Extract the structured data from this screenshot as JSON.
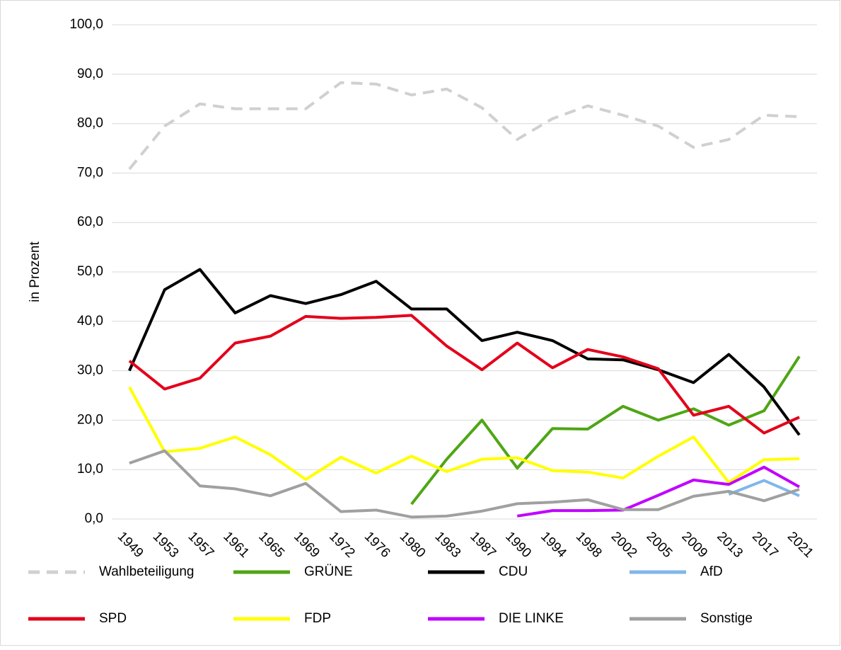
{
  "chart_data": {
    "type": "line",
    "y_label": "in Prozent",
    "categories": [
      "1949",
      "1953",
      "1957",
      "1961",
      "1965",
      "1969",
      "1972",
      "1976",
      "1980",
      "1983",
      "1987",
      "1990",
      "1994",
      "1998",
      "2002",
      "2005",
      "2009",
      "2013",
      "2017",
      "2021"
    ],
    "series": [
      {
        "name": "Wahlbeteiligung",
        "color": "#d0d0d0",
        "style": "dashed",
        "values": [
          70.8,
          79.5,
          84.0,
          83.0,
          83.0,
          83.0,
          88.3,
          88.0,
          85.8,
          87.0,
          83.2,
          76.8,
          81.0,
          83.6,
          81.7,
          79.5,
          75.2,
          76.8,
          81.7,
          81.4
        ]
      },
      {
        "name": "GRÜNE",
        "color": "#4ea614",
        "values": [
          null,
          null,
          null,
          null,
          null,
          null,
          null,
          null,
          3.0,
          12.1,
          20.0,
          10.3,
          18.3,
          18.2,
          22.8,
          20.0,
          22.3,
          19.0,
          21.9,
          32.9
        ]
      },
      {
        "name": "CDU",
        "color": "#000000",
        "values": [
          30.0,
          46.4,
          50.5,
          41.7,
          45.2,
          43.6,
          45.4,
          48.1,
          42.5,
          42.5,
          36.1,
          37.8,
          36.1,
          32.4,
          32.2,
          30.2,
          27.6,
          33.3,
          26.7,
          17.0
        ]
      },
      {
        "name": "AfD",
        "color": "#7fb6ec",
        "values": [
          null,
          null,
          null,
          null,
          null,
          null,
          null,
          null,
          null,
          null,
          null,
          null,
          null,
          null,
          null,
          null,
          null,
          5.0,
          7.8,
          4.7
        ]
      },
      {
        "name": "SPD",
        "color": "#e3001b",
        "values": [
          32.0,
          26.3,
          28.5,
          35.6,
          37.0,
          41.0,
          40.6,
          40.8,
          41.2,
          35.0,
          30.2,
          35.6,
          30.6,
          34.3,
          32.8,
          30.4,
          21.0,
          22.8,
          17.4,
          20.6
        ]
      },
      {
        "name": "FDP",
        "color": "#ffff00",
        "values": [
          26.7,
          13.6,
          14.3,
          16.6,
          13.0,
          8.0,
          12.5,
          9.3,
          12.7,
          9.6,
          12.1,
          12.4,
          9.8,
          9.5,
          8.3,
          12.7,
          16.6,
          7.4,
          12.0,
          12.2
        ]
      },
      {
        "name": "DIE LINKE",
        "color": "#c000ff",
        "values": [
          null,
          null,
          null,
          null,
          null,
          null,
          null,
          null,
          null,
          null,
          null,
          0.6,
          1.7,
          1.7,
          1.8,
          4.8,
          7.9,
          7.0,
          10.5,
          6.5
        ]
      },
      {
        "name": "Sonstige",
        "color": "#a0a0a0",
        "values": [
          11.3,
          13.8,
          6.7,
          6.1,
          4.7,
          7.2,
          1.5,
          1.8,
          0.4,
          0.6,
          1.6,
          3.1,
          3.4,
          3.9,
          1.9,
          1.9,
          4.6,
          5.6,
          3.7,
          6.0
        ]
      }
    ],
    "ylim": [
      0,
      100
    ],
    "yticks": [
      {
        "value": 0,
        "label": "0,0"
      },
      {
        "value": 10,
        "label": "10,0"
      },
      {
        "value": 20,
        "label": "20,0"
      },
      {
        "value": 30,
        "label": "30,0"
      },
      {
        "value": 40,
        "label": "40,0"
      },
      {
        "value": 50,
        "label": "50,0"
      },
      {
        "value": 60,
        "label": "60,0"
      },
      {
        "value": 70,
        "label": "70,0"
      },
      {
        "value": 80,
        "label": "80,0"
      },
      {
        "value": 90,
        "label": "90,0"
      },
      {
        "value": 100,
        "label": "100,0"
      }
    ],
    "grid": true
  }
}
